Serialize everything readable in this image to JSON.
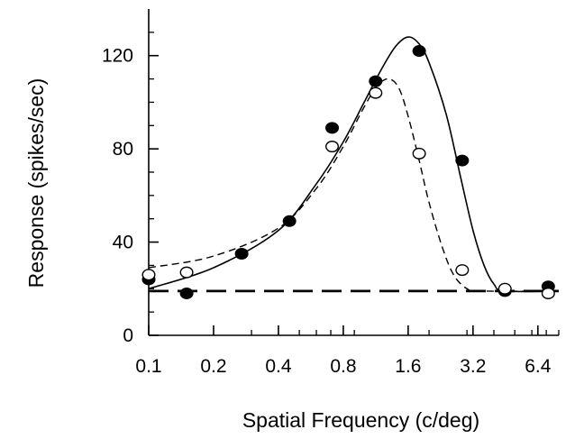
{
  "chart_data": {
    "type": "line",
    "xlabel": "Spatial Frequency (c/deg)",
    "ylabel": "Response (spikes/sec)",
    "x_scale": "log2",
    "xlim": [
      0.1,
      8.0
    ],
    "ylim": [
      0,
      140
    ],
    "x_ticks": [
      0.1,
      0.2,
      0.4,
      0.8,
      1.6,
      3.2,
      6.4
    ],
    "x_tick_labels": [
      "0.1",
      "0.2",
      "0.4",
      "0.8",
      "1.6",
      "3.2",
      "6.4"
    ],
    "y_ticks": [
      0,
      40,
      80,
      120
    ],
    "y_tick_labels": [
      "0",
      "40",
      "80",
      "120"
    ],
    "grid": false,
    "legend": "none",
    "series": [
      {
        "marker": "filled-circle",
        "points": [
          {
            "x": 0.1,
            "y": 24
          },
          {
            "x": 0.15,
            "y": 18
          },
          {
            "x": 0.27,
            "y": 35
          },
          {
            "x": 0.45,
            "y": 49
          },
          {
            "x": 0.71,
            "y": 89
          },
          {
            "x": 1.13,
            "y": 109
          },
          {
            "x": 1.8,
            "y": 122
          },
          {
            "x": 2.85,
            "y": 75
          },
          {
            "x": 4.5,
            "y": 19
          },
          {
            "x": 7.15,
            "y": 21
          }
        ]
      },
      {
        "marker": "open-circle",
        "points": [
          {
            "x": 0.1,
            "y": 26
          },
          {
            "x": 0.15,
            "y": 27
          },
          {
            "x": 0.71,
            "y": 81
          },
          {
            "x": 1.13,
            "y": 104
          },
          {
            "x": 1.8,
            "y": 78
          },
          {
            "x": 2.85,
            "y": 28
          },
          {
            "x": 4.5,
            "y": 20
          },
          {
            "x": 7.15,
            "y": 18
          }
        ]
      },
      {
        "line_style": "solid",
        "points": [
          {
            "x": 0.1,
            "y": 20
          },
          {
            "x": 0.2,
            "y": 29
          },
          {
            "x": 0.4,
            "y": 45
          },
          {
            "x": 0.6,
            "y": 65
          },
          {
            "x": 0.8,
            "y": 83
          },
          {
            "x": 1.0,
            "y": 100
          },
          {
            "x": 1.2,
            "y": 114
          },
          {
            "x": 1.4,
            "y": 124
          },
          {
            "x": 1.6,
            "y": 128
          },
          {
            "x": 1.8,
            "y": 125
          },
          {
            "x": 2.0,
            "y": 117
          },
          {
            "x": 2.4,
            "y": 95
          },
          {
            "x": 2.8,
            "y": 68
          },
          {
            "x": 3.2,
            "y": 45
          },
          {
            "x": 3.6,
            "y": 30
          },
          {
            "x": 4.0,
            "y": 22
          },
          {
            "x": 4.5,
            "y": 19
          },
          {
            "x": 8.0,
            "y": 19
          }
        ]
      },
      {
        "line_style": "dashed",
        "points": [
          {
            "x": 0.1,
            "y": 29
          },
          {
            "x": 0.2,
            "y": 34
          },
          {
            "x": 0.4,
            "y": 46
          },
          {
            "x": 0.6,
            "y": 63
          },
          {
            "x": 0.8,
            "y": 81
          },
          {
            "x": 1.0,
            "y": 98
          },
          {
            "x": 1.15,
            "y": 107
          },
          {
            "x": 1.3,
            "y": 110
          },
          {
            "x": 1.45,
            "y": 106
          },
          {
            "x": 1.6,
            "y": 94
          },
          {
            "x": 1.8,
            "y": 75
          },
          {
            "x": 2.0,
            "y": 57
          },
          {
            "x": 2.3,
            "y": 38
          },
          {
            "x": 2.6,
            "y": 26
          },
          {
            "x": 3.0,
            "y": 20
          },
          {
            "x": 3.5,
            "y": 19
          },
          {
            "x": 8.0,
            "y": 19
          }
        ]
      },
      {
        "line_style": "long-dash-baseline",
        "points": [
          {
            "x": 0.1,
            "y": 19
          },
          {
            "x": 8.0,
            "y": 19
          }
        ]
      }
    ]
  }
}
